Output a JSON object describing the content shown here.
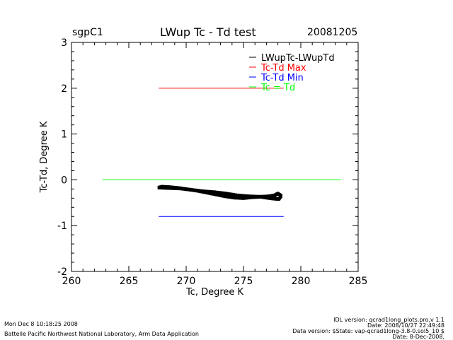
{
  "header": {
    "site": "sgpC1",
    "title": "LWup Tc - Td test",
    "date": "20081205"
  },
  "footer": {
    "left_line1": "Mon Dec  8 10:18:25 2008",
    "left_line2": "Battelle Pacific Northwest National Laboratory, Arm Data Application",
    "right_line1": "IDL version: qcrad1long_plots.pro,v 1.1",
    "right_line2": "Date: 2008/10/27 22:49:48",
    "right_line3": "Data version: $State: vap-qcrad1long-3.8-0.sol5_10 $",
    "right_line4": "Date: 8-Dec-2008,"
  },
  "colors": {
    "data": "#000000",
    "max": "#ff0000",
    "min": "#0000ff",
    "equal": "#00ff00"
  },
  "chart_data": {
    "type": "scatter",
    "title": "LWup Tc - Td test",
    "xlabel": "Tc, Degree K",
    "ylabel": "Tc-Td, Degree K",
    "xlim": [
      260,
      285
    ],
    "ylim": [
      -2,
      3
    ],
    "xticks": [
      "260",
      "265",
      "270",
      "275",
      "280",
      "285"
    ],
    "yticks": [
      "-2",
      "-1",
      "0",
      "1",
      "2",
      "3"
    ],
    "grid": false,
    "legend_position": "top-right",
    "legend": [
      {
        "label": "LWupTc-LWupTd",
        "color": "#000000"
      },
      {
        "label": "Tc-Td Max",
        "color": "#ff0000"
      },
      {
        "label": "Tc-Td Min",
        "color": "#0000ff"
      },
      {
        "label": "Tc = Td",
        "color": "#00ff00"
      }
    ],
    "series": [
      {
        "name": "LWupTc-LWupTd",
        "type": "scatter",
        "color": "#000000",
        "x": [
          267.6,
          268.5,
          269.5,
          270.5,
          271.5,
          272.5,
          273.5,
          274.5,
          275.5,
          276.5,
          277.2,
          277.7,
          278.0,
          278.3,
          278.1,
          277.6,
          277.0,
          276.5,
          275.8,
          275.0,
          274.2,
          273.4,
          272.6,
          271.8,
          271.0,
          270.2,
          269.4,
          268.6,
          267.9
        ],
        "y": [
          -0.17,
          -0.18,
          -0.19,
          -0.22,
          -0.25,
          -0.27,
          -0.3,
          -0.34,
          -0.36,
          -0.37,
          -0.36,
          -0.34,
          -0.3,
          -0.35,
          -0.42,
          -0.41,
          -0.39,
          -0.37,
          -0.38,
          -0.4,
          -0.39,
          -0.36,
          -0.32,
          -0.28,
          -0.24,
          -0.21,
          -0.18,
          -0.16,
          -0.15
        ]
      },
      {
        "name": "Tc-Td Max",
        "type": "line",
        "color": "#ff0000",
        "x": [
          267.6,
          278.5
        ],
        "y": [
          2.0,
          2.0
        ]
      },
      {
        "name": "Tc-Td Min",
        "type": "line",
        "color": "#0000ff",
        "x": [
          267.6,
          278.5
        ],
        "y": [
          -0.8,
          -0.8
        ]
      },
      {
        "name": "Tc = Td",
        "type": "line",
        "color": "#00ff00",
        "x": [
          262.7,
          283.5
        ],
        "y": [
          0.0,
          0.0
        ]
      }
    ]
  }
}
